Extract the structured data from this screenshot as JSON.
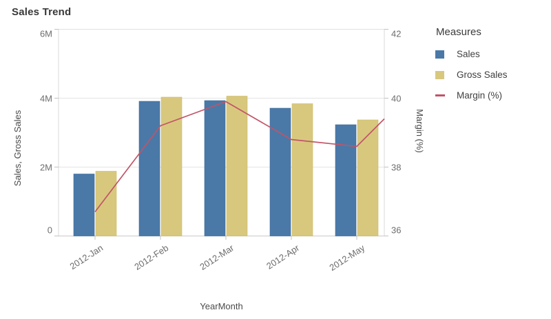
{
  "title": "Sales Trend",
  "colors": {
    "sales_bar": "#4a79a8",
    "gross_sales_bar": "#d8c87e",
    "margin_line": "#c15467",
    "gridline": "#e4e4e4",
    "axis_line": "#c9c9c9",
    "tick_mark": "#c2c2c2"
  },
  "legend": {
    "title": "Measures",
    "items": [
      {
        "label": "Sales",
        "swatch": "square",
        "color": "#4a79a8"
      },
      {
        "label": "Gross Sales",
        "swatch": "square",
        "color": "#d8c87e"
      },
      {
        "label": "Margin (%)",
        "swatch": "line",
        "color": "#c15467"
      }
    ]
  },
  "chart_data": {
    "type": "combo",
    "title": "Sales Trend",
    "x_label": "YearMonth",
    "categories": [
      "2012-Jan",
      "2012-Feb",
      "2012-Mar",
      "2012-Apr",
      "2012-May"
    ],
    "series": [
      {
        "name": "Sales",
        "type": "bar",
        "axis": "left",
        "unit": "millions",
        "values": [
          1.8,
          3.91,
          3.93,
          3.71,
          3.23
        ]
      },
      {
        "name": "Gross Sales",
        "type": "bar",
        "axis": "left",
        "unit": "millions",
        "values": [
          1.88,
          4.03,
          4.06,
          3.84,
          3.37
        ]
      },
      {
        "name": "Margin (%)",
        "type": "line",
        "axis": "right",
        "values": [
          36.7,
          39.2,
          39.9,
          38.8,
          38.6
        ],
        "continues_to_value_at_right_edge": 39.4
      }
    ],
    "left_axis": {
      "label": "Sales, Gross Sales",
      "ticks": [
        "0",
        "2M",
        "4M",
        "6M"
      ],
      "range": [
        0,
        6000000
      ]
    },
    "right_axis": {
      "label": "Margin (%)",
      "ticks": [
        "36",
        "38",
        "40",
        "42"
      ],
      "range": [
        36,
        42
      ]
    },
    "grid": true,
    "legend_position": "right"
  }
}
